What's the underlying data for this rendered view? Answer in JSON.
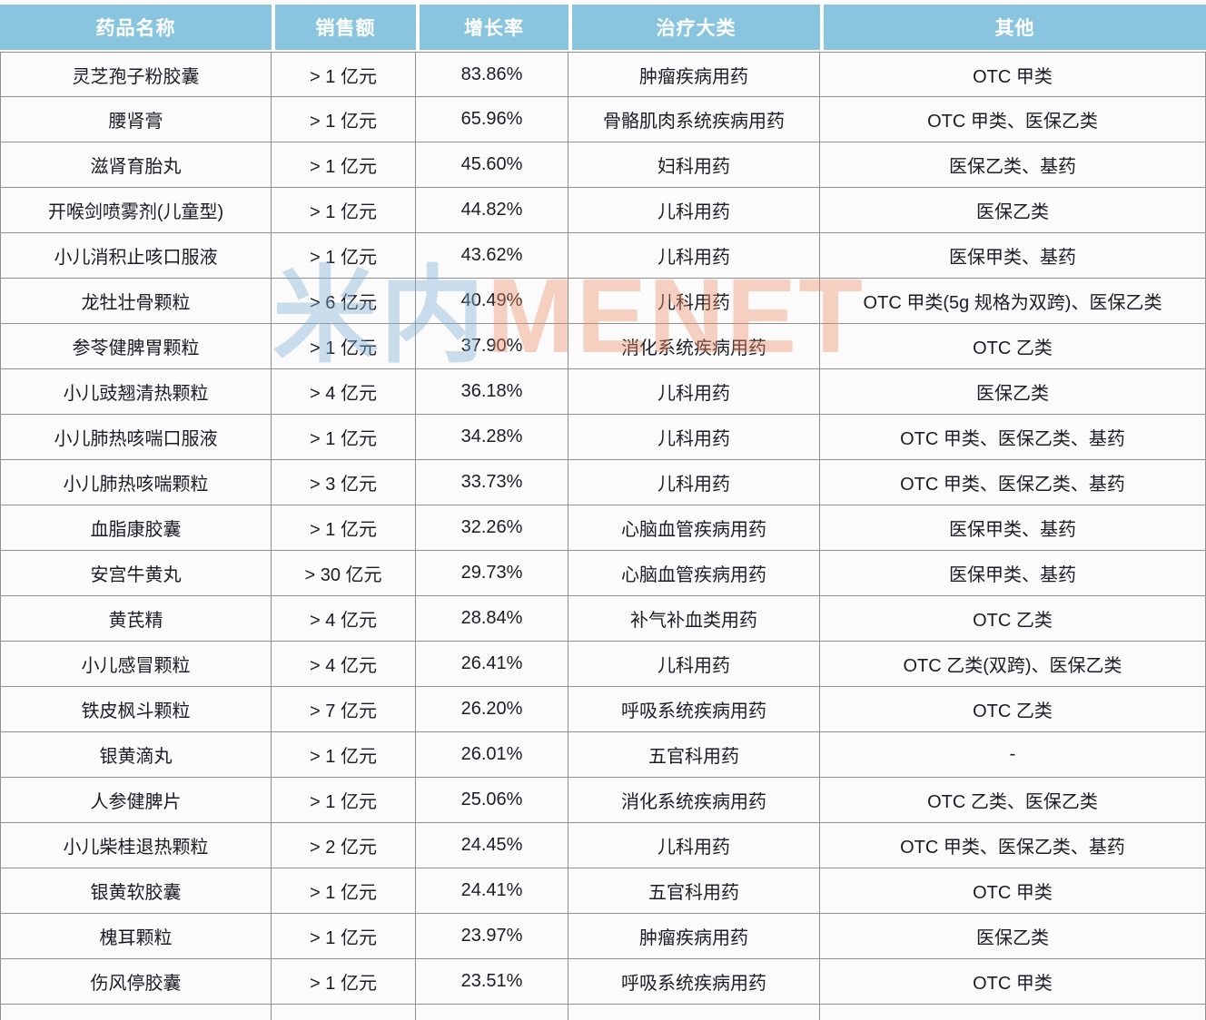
{
  "table": {
    "columns": [
      "药品名称",
      "销售额",
      "增长率",
      "治疗大类",
      "其他"
    ],
    "rows": [
      [
        "灵芝孢子粉胶囊",
        "> 1 亿元",
        "83.86%",
        "肿瘤疾病用药",
        "OTC 甲类"
      ],
      [
        "腰肾膏",
        "> 1 亿元",
        "65.96%",
        "骨骼肌肉系统疾病用药",
        "OTC 甲类、医保乙类"
      ],
      [
        "滋肾育胎丸",
        "> 1 亿元",
        "45.60%",
        "妇科用药",
        "医保乙类、基药"
      ],
      [
        "开喉剑喷雾剂(儿童型)",
        "> 1 亿元",
        "44.82%",
        "儿科用药",
        "医保乙类"
      ],
      [
        "小儿消积止咳口服液",
        "> 1 亿元",
        "43.62%",
        "儿科用药",
        "医保甲类、基药"
      ],
      [
        "龙牡壮骨颗粒",
        "> 6 亿元",
        "40.49%",
        "儿科用药",
        "OTC 甲类(5g 规格为双跨)、医保乙类"
      ],
      [
        "参苓健脾胃颗粒",
        "> 1 亿元",
        "37.90%",
        "消化系统疾病用药",
        "OTC 乙类"
      ],
      [
        "小儿豉翘清热颗粒",
        "> 4 亿元",
        "36.18%",
        "儿科用药",
        "医保乙类"
      ],
      [
        "小儿肺热咳喘口服液",
        "> 1 亿元",
        "34.28%",
        "儿科用药",
        "OTC 甲类、医保乙类、基药"
      ],
      [
        "小儿肺热咳喘颗粒",
        "> 3 亿元",
        "33.73%",
        "儿科用药",
        "OTC 甲类、医保乙类、基药"
      ],
      [
        "血脂康胶囊",
        "> 1 亿元",
        "32.26%",
        "心脑血管疾病用药",
        "医保甲类、基药"
      ],
      [
        "安宫牛黄丸",
        "> 30 亿元",
        "29.73%",
        "心脑血管疾病用药",
        "医保甲类、基药"
      ],
      [
        "黄芪精",
        "> 4 亿元",
        "28.84%",
        "补气补血类用药",
        "OTC 乙类"
      ],
      [
        "小儿感冒颗粒",
        "> 4 亿元",
        "26.41%",
        "儿科用药",
        "OTC 乙类(双跨)、医保乙类"
      ],
      [
        "铁皮枫斗颗粒",
        "> 7 亿元",
        "26.20%",
        "呼吸系统疾病用药",
        "OTC 乙类"
      ],
      [
        "银黄滴丸",
        "> 1 亿元",
        "26.01%",
        "五官科用药",
        "-"
      ],
      [
        "人参健脾片",
        "> 1 亿元",
        "25.06%",
        "消化系统疾病用药",
        "OTC 乙类、医保乙类"
      ],
      [
        "小儿柴桂退热颗粒",
        "> 2 亿元",
        "24.45%",
        "儿科用药",
        "OTC 甲类、医保乙类、基药"
      ],
      [
        "银黄软胶囊",
        "> 1 亿元",
        "24.41%",
        "五官科用药",
        "OTC 甲类"
      ],
      [
        "槐耳颗粒",
        "> 1 亿元",
        "23.97%",
        "肿瘤疾病用药",
        "医保乙类"
      ],
      [
        "伤风停胶囊",
        "> 1 亿元",
        "23.51%",
        "呼吸系统疾病用药",
        "OTC 甲类"
      ]
    ],
    "column_keys": [
      "drug-name",
      "sales",
      "growth-rate",
      "category",
      "other"
    ]
  },
  "watermark": {
    "part_cn": "米内",
    "part_en": "MENET",
    "color_cn": "#7fb0d4",
    "color_en": "#ee9066"
  },
  "colors": {
    "header_bg": "#8ac5df",
    "header_text": "#ffffff",
    "row_bg": "#fbfbfb",
    "border": "#8f8f8f",
    "body_text": "#1c1c24"
  }
}
